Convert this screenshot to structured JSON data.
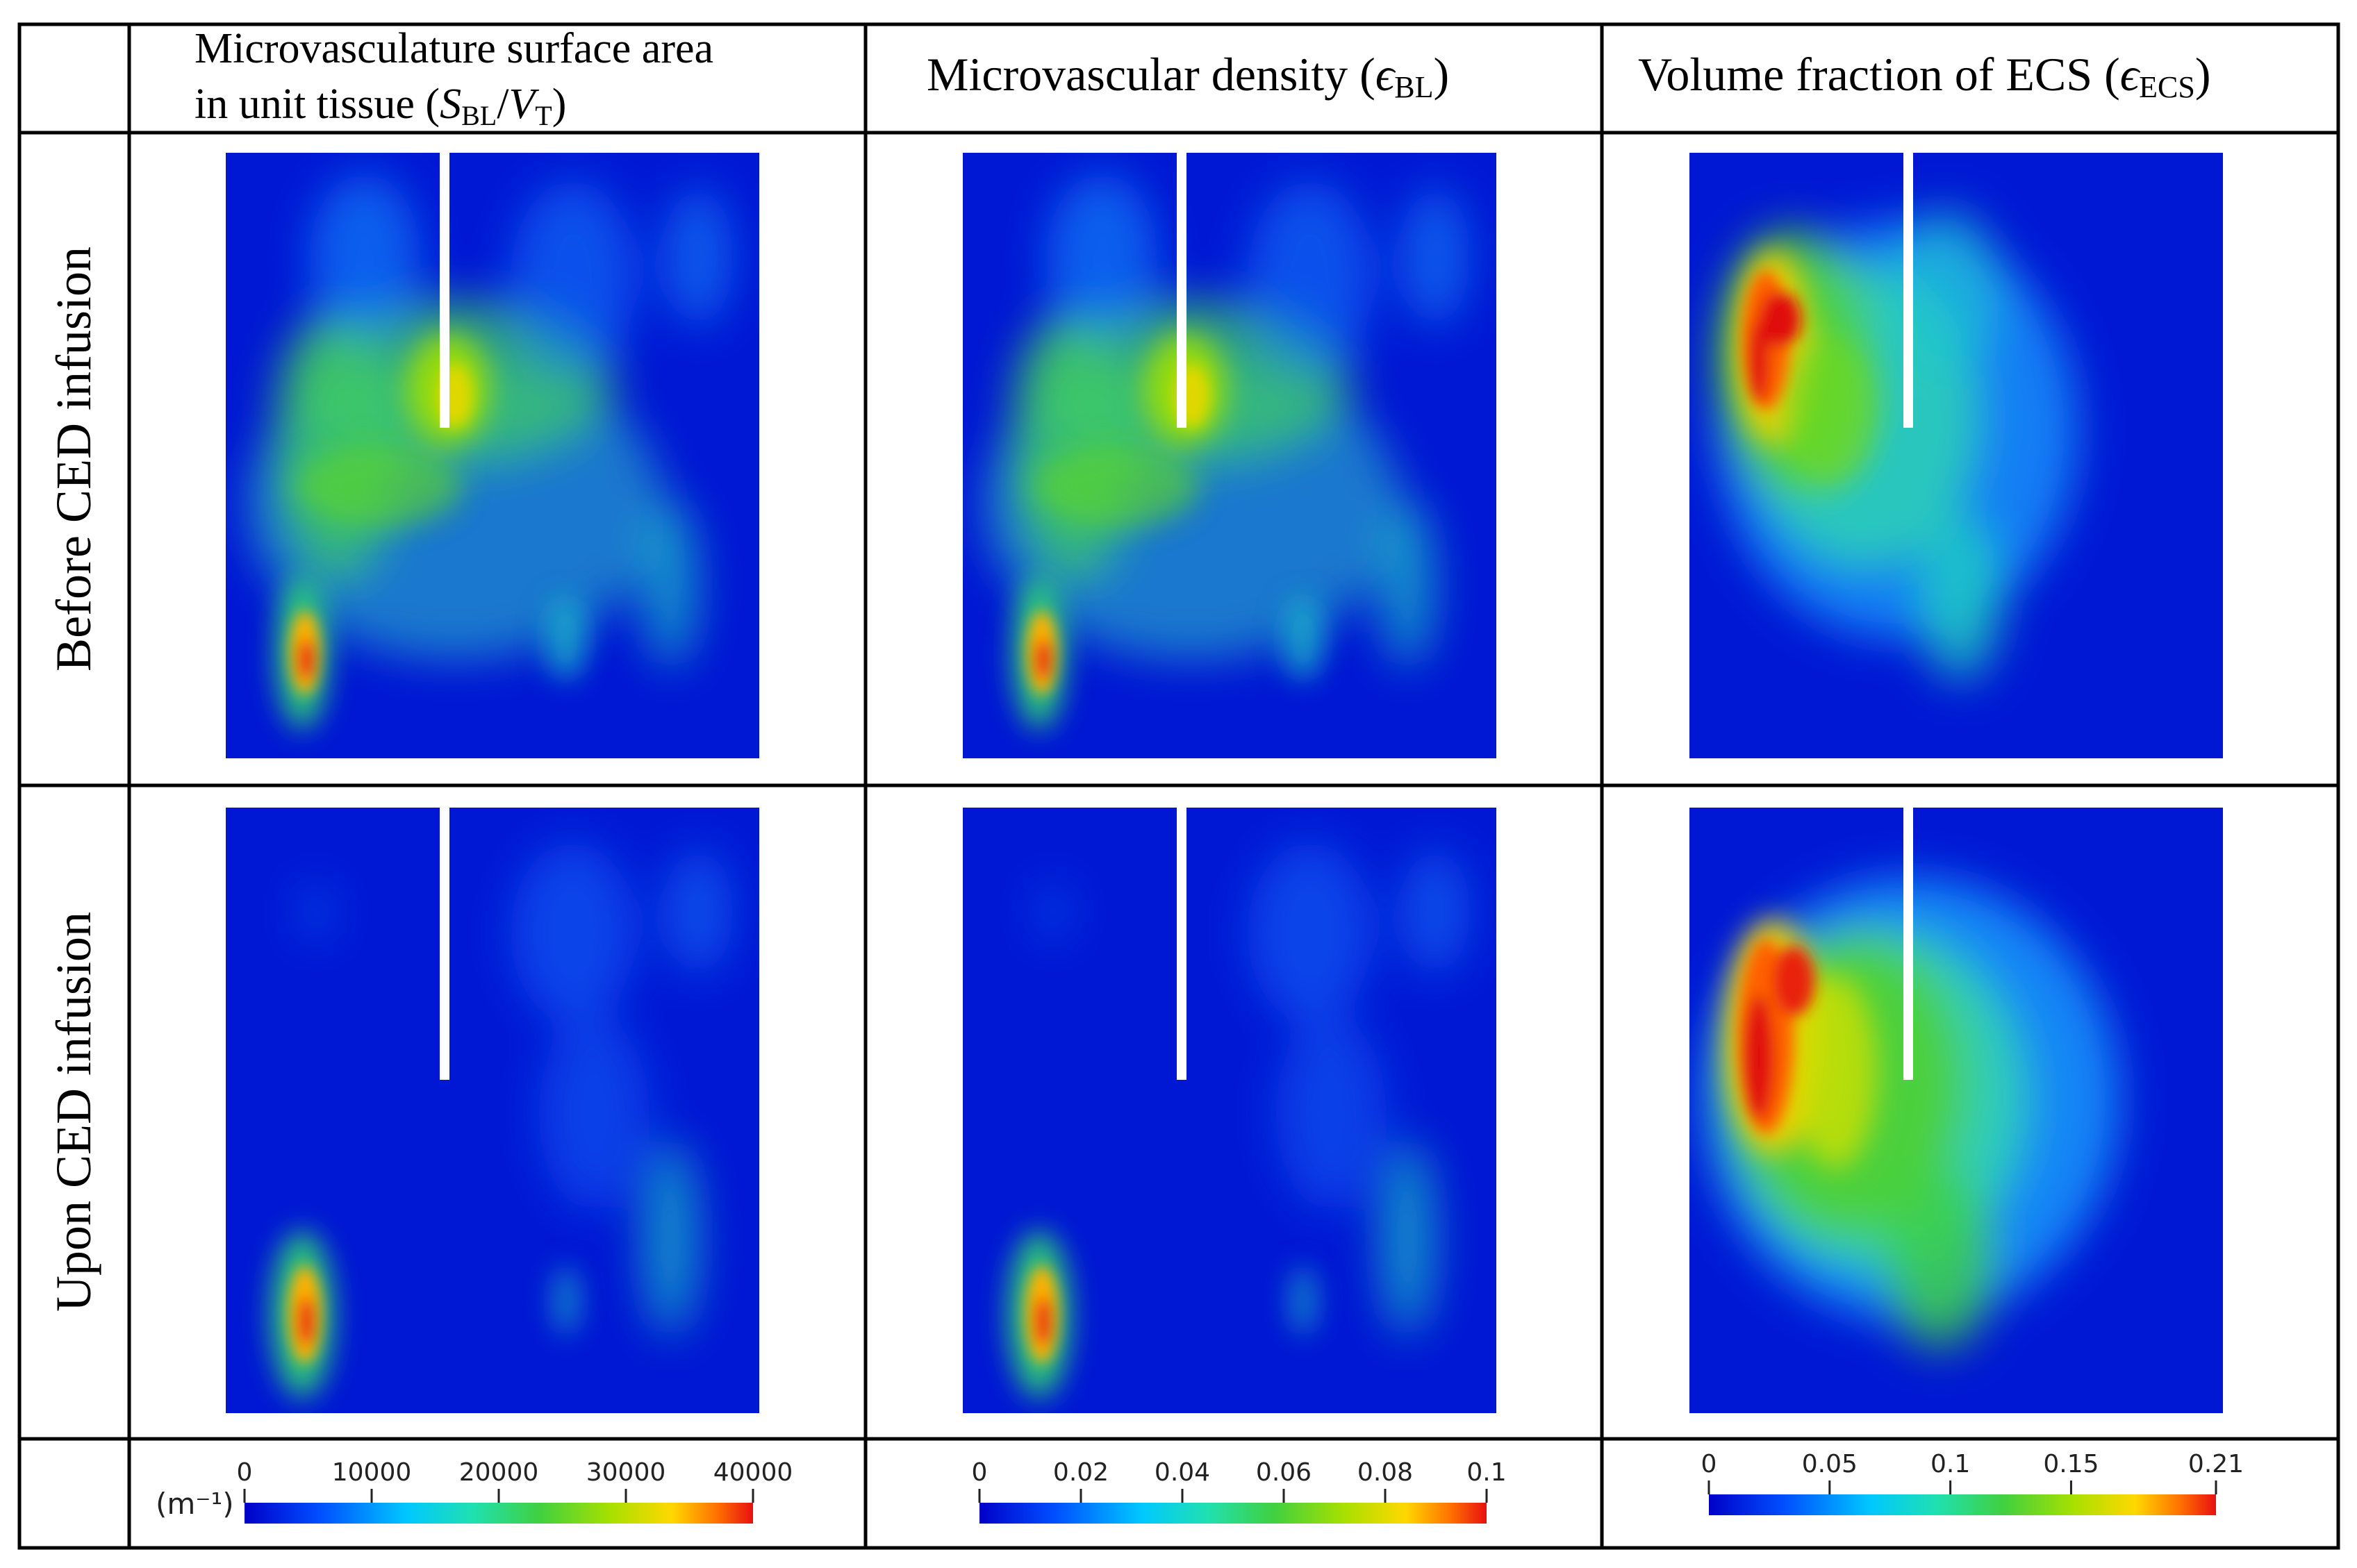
{
  "columns": [
    {
      "header_line1": "Microvasculature surface area",
      "header_line2_prefix": "in unit tissue (",
      "header_sym1": "S",
      "header_sub1": "BL",
      "header_slash": "/",
      "header_sym2": "V",
      "header_sub2": "T",
      "header_close": ")"
    },
    {
      "header_prefix": "Microvascular density (",
      "header_sym": "ϵ",
      "header_sub": "BL",
      "header_close": ")"
    },
    {
      "header_prefix": "Volume fraction of ECS (",
      "header_sym": "ϵ",
      "header_sub": "ECS",
      "header_close": ")"
    }
  ],
  "rows": [
    {
      "label": "Before CED infusion"
    },
    {
      "label": "Upon CED infusion"
    }
  ],
  "colorbars": [
    {
      "unit_label": "(m⁻¹)",
      "ticks": [
        "0",
        "10000",
        "20000",
        "30000",
        "40000"
      ],
      "min": 0,
      "max": 40000
    },
    {
      "ticks": [
        "0",
        "0.02",
        "0.04",
        "0.06",
        "0.08",
        "0.1"
      ],
      "min": 0,
      "max": 0.1
    },
    {
      "ticks": [
        "0",
        "0.05",
        "0.1",
        "0.15",
        "0.21"
      ],
      "min": 0,
      "max": 0.21
    }
  ],
  "colors": {
    "background": "#0018d4",
    "jet": [
      "#00007f",
      "#0000ff",
      "#00a0ff",
      "#18e8c8",
      "#30c830",
      "#7fd800",
      "#f0e800",
      "#ff8000",
      "#e01010"
    ],
    "grid": "#000000",
    "needle": "#ffffff"
  }
}
